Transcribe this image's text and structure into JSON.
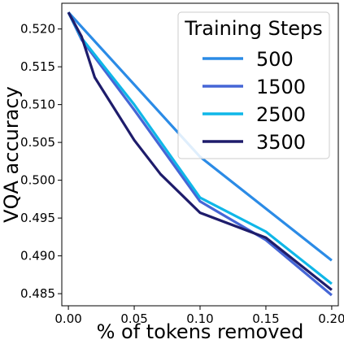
{
  "chart_data": {
    "type": "line",
    "xlabel": "% of tokens removed",
    "ylabel": "VQA accuracy",
    "xlim": [
      -0.005,
      0.205
    ],
    "ylim": [
      0.4834,
      0.5234
    ],
    "xticks": [
      0.0,
      0.05,
      0.1,
      0.15,
      0.2
    ],
    "xtick_labels": [
      "0.00",
      "0.05",
      "0.10",
      "0.15",
      "0.20"
    ],
    "yticks": [
      0.485,
      0.49,
      0.495,
      0.5,
      0.505,
      0.51,
      0.515,
      0.52
    ],
    "ytick_labels": [
      "0.485",
      "0.490",
      "0.495",
      "0.500",
      "0.505",
      "0.510",
      "0.515",
      "0.520"
    ],
    "grid": false,
    "legend": {
      "title": "Training Steps",
      "position": "top-right"
    },
    "series": [
      {
        "name": "500",
        "color": "#2b8be6",
        "x": [
          0.0,
          0.1,
          0.2
        ],
        "y": [
          0.5222,
          0.5031,
          0.4894
        ]
      },
      {
        "name": "1500",
        "color": "#4566d6",
        "x": [
          0.0,
          0.01,
          0.05,
          0.1,
          0.15,
          0.2
        ],
        "y": [
          0.5222,
          0.5186,
          0.5093,
          0.4972,
          0.4921,
          0.4848
        ]
      },
      {
        "name": "2500",
        "color": "#0fb7e8",
        "x": [
          0.0,
          0.01,
          0.05,
          0.1,
          0.15,
          0.2
        ],
        "y": [
          0.5222,
          0.5188,
          0.51,
          0.4977,
          0.4932,
          0.4863
        ]
      },
      {
        "name": "3500",
        "color": "#1e1c6b",
        "x": [
          0.0,
          0.01,
          0.02,
          0.05,
          0.07,
          0.1,
          0.15,
          0.2
        ],
        "y": [
          0.5222,
          0.519,
          0.5136,
          0.5053,
          0.5008,
          0.4957,
          0.4924,
          0.4855
        ]
      }
    ]
  }
}
